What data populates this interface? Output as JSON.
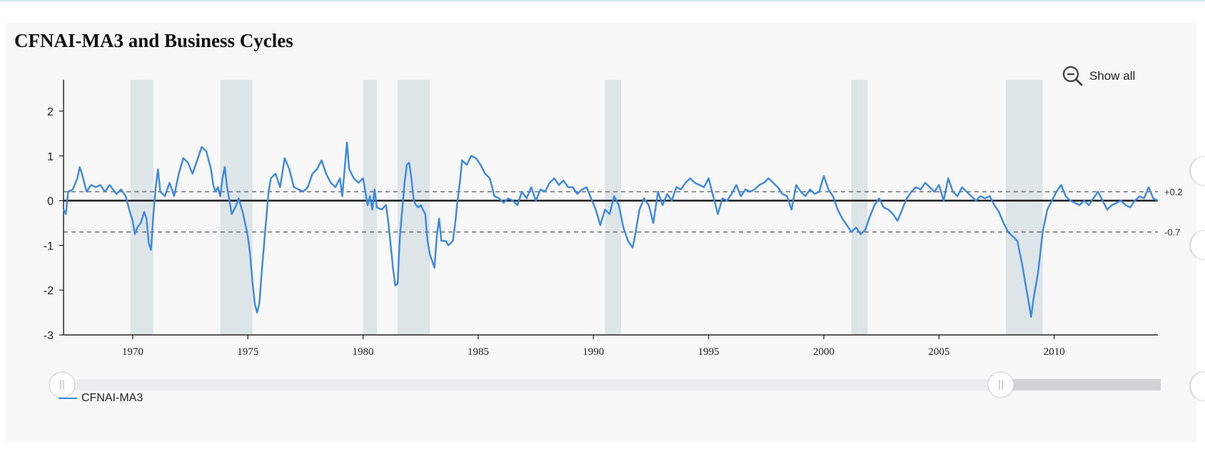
{
  "title": "CFNAI-MA3 and Business Cycles",
  "show_all_label": "Show all",
  "show_all_icon": "zoom-out-icon",
  "legend": {
    "label": "CFNAI-MA3",
    "color": "#3b88e0"
  },
  "colors": {
    "line": "#3b88e0",
    "recession": "#dde5e8",
    "zero_line": "#111111",
    "threshold": "#666666",
    "slider_track": "#ececee",
    "slider_outside": "#d3d3d5"
  },
  "chart_data": {
    "type": "line",
    "title": "CFNAI-MA3 and Business Cycles",
    "xlabel": "",
    "ylabel": "",
    "xlim": [
      1967.0,
      2014.5
    ],
    "ylim": [
      -3,
      2.7
    ],
    "xticks": [
      "1970",
      "1975",
      "1980",
      "1985",
      "1990",
      "1995",
      "2000",
      "2005",
      "2010"
    ],
    "yticks": [
      "2",
      "1",
      "0",
      "-1",
      "-2",
      "-3"
    ],
    "grid": false,
    "legend_position": "bottom-left",
    "reference_lines": [
      {
        "y": 0.2,
        "label": "+0.2",
        "style": "dashed"
      },
      {
        "y": -0.7,
        "label": "-0.7",
        "style": "dashed"
      },
      {
        "y": 0,
        "label": "",
        "style": "solid"
      }
    ],
    "recessions": [
      {
        "start": 1969.9,
        "end": 1970.9
      },
      {
        "start": 1973.8,
        "end": 1975.2
      },
      {
        "start": 1980.0,
        "end": 1980.6
      },
      {
        "start": 1981.5,
        "end": 1982.9
      },
      {
        "start": 1990.5,
        "end": 1991.2
      },
      {
        "start": 2001.2,
        "end": 2001.9
      },
      {
        "start": 2007.9,
        "end": 2009.5
      }
    ],
    "series": [
      {
        "name": "CFNAI-MA3",
        "points": [
          [
            1967.0,
            -0.2
          ],
          [
            1967.1,
            -0.3
          ],
          [
            1967.2,
            0.2
          ],
          [
            1967.4,
            0.25
          ],
          [
            1967.6,
            0.5
          ],
          [
            1967.7,
            0.75
          ],
          [
            1967.8,
            0.6
          ],
          [
            1968.0,
            0.2
          ],
          [
            1968.2,
            0.35
          ],
          [
            1968.4,
            0.3
          ],
          [
            1968.6,
            0.35
          ],
          [
            1968.8,
            0.2
          ],
          [
            1969.0,
            0.35
          ],
          [
            1969.3,
            0.15
          ],
          [
            1969.5,
            0.25
          ],
          [
            1969.7,
            0.1
          ],
          [
            1969.85,
            -0.2
          ],
          [
            1970.0,
            -0.45
          ],
          [
            1970.1,
            -0.75
          ],
          [
            1970.2,
            -0.6
          ],
          [
            1970.35,
            -0.5
          ],
          [
            1970.5,
            -0.25
          ],
          [
            1970.6,
            -0.4
          ],
          [
            1970.7,
            -0.95
          ],
          [
            1970.8,
            -1.1
          ],
          [
            1970.9,
            -0.3
          ],
          [
            1971.0,
            0.3
          ],
          [
            1971.1,
            0.7
          ],
          [
            1971.2,
            0.2
          ],
          [
            1971.4,
            0.1
          ],
          [
            1971.6,
            0.4
          ],
          [
            1971.8,
            0.1
          ],
          [
            1972.0,
            0.6
          ],
          [
            1972.2,
            0.95
          ],
          [
            1972.4,
            0.85
          ],
          [
            1972.6,
            0.6
          ],
          [
            1972.8,
            0.9
          ],
          [
            1973.0,
            1.2
          ],
          [
            1973.2,
            1.1
          ],
          [
            1973.4,
            0.7
          ],
          [
            1973.5,
            0.35
          ],
          [
            1973.6,
            0.2
          ],
          [
            1973.7,
            0.3
          ],
          [
            1973.8,
            0.1
          ],
          [
            1973.9,
            0.5
          ],
          [
            1974.0,
            0.75
          ],
          [
            1974.1,
            0.3
          ],
          [
            1974.2,
            0.0
          ],
          [
            1974.3,
            -0.3
          ],
          [
            1974.5,
            -0.1
          ],
          [
            1974.6,
            0.05
          ],
          [
            1974.8,
            -0.3
          ],
          [
            1975.0,
            -0.8
          ],
          [
            1975.1,
            -1.2
          ],
          [
            1975.2,
            -1.8
          ],
          [
            1975.3,
            -2.3
          ],
          [
            1975.4,
            -2.5
          ],
          [
            1975.5,
            -2.3
          ],
          [
            1975.6,
            -1.6
          ],
          [
            1975.7,
            -1.0
          ],
          [
            1975.8,
            -0.4
          ],
          [
            1975.9,
            0.2
          ],
          [
            1976.0,
            0.5
          ],
          [
            1976.2,
            0.6
          ],
          [
            1976.4,
            0.3
          ],
          [
            1976.6,
            0.95
          ],
          [
            1976.8,
            0.7
          ],
          [
            1977.0,
            0.3
          ],
          [
            1977.2,
            0.25
          ],
          [
            1977.4,
            0.2
          ],
          [
            1977.6,
            0.3
          ],
          [
            1977.8,
            0.6
          ],
          [
            1978.0,
            0.7
          ],
          [
            1978.2,
            0.9
          ],
          [
            1978.4,
            0.6
          ],
          [
            1978.6,
            0.4
          ],
          [
            1978.8,
            0.3
          ],
          [
            1979.0,
            0.5
          ],
          [
            1979.1,
            0.1
          ],
          [
            1979.3,
            1.3
          ],
          [
            1979.4,
            0.7
          ],
          [
            1979.6,
            0.5
          ],
          [
            1979.8,
            0.4
          ],
          [
            1980.0,
            0.5
          ],
          [
            1980.1,
            0.2
          ],
          [
            1980.2,
            -0.1
          ],
          [
            1980.3,
            0.1
          ],
          [
            1980.4,
            -0.2
          ],
          [
            1980.5,
            0.25
          ],
          [
            1980.6,
            -0.15
          ],
          [
            1980.8,
            -0.2
          ],
          [
            1981.0,
            -0.1
          ],
          [
            1981.1,
            -0.5
          ],
          [
            1981.3,
            -1.5
          ],
          [
            1981.4,
            -1.9
          ],
          [
            1981.5,
            -1.85
          ],
          [
            1981.6,
            -0.8
          ],
          [
            1981.8,
            0.4
          ],
          [
            1981.9,
            0.8
          ],
          [
            1982.0,
            0.85
          ],
          [
            1982.1,
            0.5
          ],
          [
            1982.2,
            0.0
          ],
          [
            1982.3,
            -0.1
          ],
          [
            1982.4,
            -0.15
          ],
          [
            1982.5,
            -0.1
          ],
          [
            1982.7,
            -0.3
          ],
          [
            1982.8,
            -0.9
          ],
          [
            1982.9,
            -1.2
          ],
          [
            1983.1,
            -1.5
          ],
          [
            1983.2,
            -0.8
          ],
          [
            1983.3,
            -0.4
          ],
          [
            1983.4,
            -0.9
          ],
          [
            1983.6,
            -0.9
          ],
          [
            1983.7,
            -1.0
          ],
          [
            1983.9,
            -0.9
          ],
          [
            1984.0,
            -0.5
          ],
          [
            1984.1,
            0.0
          ],
          [
            1984.2,
            0.4
          ],
          [
            1984.3,
            0.9
          ],
          [
            1984.5,
            0.8
          ],
          [
            1984.7,
            1.0
          ],
          [
            1984.9,
            0.95
          ],
          [
            1985.1,
            0.8
          ],
          [
            1985.3,
            0.6
          ],
          [
            1985.5,
            0.5
          ],
          [
            1985.7,
            0.1
          ],
          [
            1985.9,
            0.05
          ],
          [
            1986.1,
            -0.05
          ],
          [
            1986.3,
            0.05
          ],
          [
            1986.5,
            0.0
          ],
          [
            1986.7,
            -0.1
          ],
          [
            1986.9,
            0.2
          ],
          [
            1987.1,
            0.05
          ],
          [
            1987.3,
            0.3
          ],
          [
            1987.5,
            0.0
          ],
          [
            1987.7,
            0.25
          ],
          [
            1987.9,
            0.2
          ],
          [
            1988.1,
            0.4
          ],
          [
            1988.3,
            0.5
          ],
          [
            1988.5,
            0.35
          ],
          [
            1988.7,
            0.45
          ],
          [
            1988.9,
            0.3
          ],
          [
            1989.1,
            0.3
          ],
          [
            1989.3,
            0.15
          ],
          [
            1989.5,
            0.25
          ],
          [
            1989.7,
            0.3
          ],
          [
            1989.9,
            0.05
          ],
          [
            1990.1,
            -0.2
          ],
          [
            1990.3,
            -0.55
          ],
          [
            1990.5,
            -0.2
          ],
          [
            1990.7,
            -0.3
          ],
          [
            1990.9,
            0.1
          ],
          [
            1991.1,
            -0.1
          ],
          [
            1991.3,
            -0.6
          ],
          [
            1991.5,
            -0.9
          ],
          [
            1991.7,
            -1.05
          ],
          [
            1991.8,
            -0.8
          ],
          [
            1992.0,
            -0.2
          ],
          [
            1992.2,
            0.05
          ],
          [
            1992.4,
            -0.1
          ],
          [
            1992.6,
            -0.5
          ],
          [
            1992.8,
            0.2
          ],
          [
            1993.0,
            -0.1
          ],
          [
            1993.2,
            0.15
          ],
          [
            1993.4,
            0.0
          ],
          [
            1993.6,
            0.3
          ],
          [
            1993.8,
            0.25
          ],
          [
            1994.0,
            0.4
          ],
          [
            1994.2,
            0.5
          ],
          [
            1994.4,
            0.4
          ],
          [
            1994.6,
            0.35
          ],
          [
            1994.8,
            0.3
          ],
          [
            1995.0,
            0.5
          ],
          [
            1995.2,
            0.1
          ],
          [
            1995.4,
            -0.3
          ],
          [
            1995.6,
            0.05
          ],
          [
            1995.8,
            0.0
          ],
          [
            1996.0,
            0.15
          ],
          [
            1996.2,
            0.35
          ],
          [
            1996.4,
            0.1
          ],
          [
            1996.6,
            0.25
          ],
          [
            1996.8,
            0.2
          ],
          [
            1997.0,
            0.25
          ],
          [
            1997.2,
            0.35
          ],
          [
            1997.4,
            0.4
          ],
          [
            1997.6,
            0.5
          ],
          [
            1997.8,
            0.4
          ],
          [
            1998.0,
            0.3
          ],
          [
            1998.2,
            0.15
          ],
          [
            1998.4,
            0.1
          ],
          [
            1998.6,
            -0.2
          ],
          [
            1998.8,
            0.35
          ],
          [
            1999.0,
            0.2
          ],
          [
            1999.2,
            0.1
          ],
          [
            1999.4,
            0.25
          ],
          [
            1999.6,
            0.15
          ],
          [
            1999.8,
            0.2
          ],
          [
            2000.0,
            0.55
          ],
          [
            2000.2,
            0.25
          ],
          [
            2000.4,
            0.1
          ],
          [
            2000.6,
            -0.2
          ],
          [
            2000.8,
            -0.4
          ],
          [
            2001.0,
            -0.55
          ],
          [
            2001.2,
            -0.7
          ],
          [
            2001.4,
            -0.6
          ],
          [
            2001.6,
            -0.75
          ],
          [
            2001.8,
            -0.65
          ],
          [
            2002.0,
            -0.35
          ],
          [
            2002.2,
            -0.1
          ],
          [
            2002.4,
            0.05
          ],
          [
            2002.6,
            -0.15
          ],
          [
            2002.8,
            -0.2
          ],
          [
            2003.0,
            -0.3
          ],
          [
            2003.2,
            -0.45
          ],
          [
            2003.4,
            -0.2
          ],
          [
            2003.6,
            0.05
          ],
          [
            2003.8,
            0.2
          ],
          [
            2004.0,
            0.3
          ],
          [
            2004.2,
            0.25
          ],
          [
            2004.4,
            0.4
          ],
          [
            2004.6,
            0.3
          ],
          [
            2004.8,
            0.2
          ],
          [
            2005.0,
            0.35
          ],
          [
            2005.2,
            0.0
          ],
          [
            2005.4,
            0.5
          ],
          [
            2005.6,
            0.2
          ],
          [
            2005.8,
            0.1
          ],
          [
            2006.0,
            0.3
          ],
          [
            2006.2,
            0.2
          ],
          [
            2006.4,
            0.1
          ],
          [
            2006.6,
            0.0
          ],
          [
            2006.8,
            0.1
          ],
          [
            2007.0,
            0.05
          ],
          [
            2007.2,
            0.1
          ],
          [
            2007.4,
            -0.1
          ],
          [
            2007.6,
            -0.25
          ],
          [
            2007.8,
            -0.5
          ],
          [
            2008.0,
            -0.7
          ],
          [
            2008.2,
            -0.8
          ],
          [
            2008.4,
            -0.9
          ],
          [
            2008.6,
            -1.4
          ],
          [
            2008.8,
            -2.0
          ],
          [
            2008.9,
            -2.3
          ],
          [
            2009.0,
            -2.6
          ],
          [
            2009.1,
            -2.2
          ],
          [
            2009.3,
            -1.6
          ],
          [
            2009.5,
            -0.7
          ],
          [
            2009.7,
            -0.2
          ],
          [
            2009.9,
            0.0
          ],
          [
            2010.1,
            0.2
          ],
          [
            2010.3,
            0.35
          ],
          [
            2010.5,
            0.1
          ],
          [
            2010.7,
            0.0
          ],
          [
            2010.9,
            -0.05
          ],
          [
            2011.1,
            -0.1
          ],
          [
            2011.3,
            0.0
          ],
          [
            2011.5,
            -0.1
          ],
          [
            2011.7,
            0.05
          ],
          [
            2011.9,
            0.2
          ],
          [
            2012.1,
            0.0
          ],
          [
            2012.3,
            -0.2
          ],
          [
            2012.5,
            -0.1
          ],
          [
            2012.7,
            -0.05
          ],
          [
            2012.9,
            0.0
          ],
          [
            2013.1,
            -0.1
          ],
          [
            2013.3,
            -0.15
          ],
          [
            2013.5,
            0.0
          ],
          [
            2013.7,
            0.1
          ],
          [
            2013.9,
            0.05
          ],
          [
            2014.1,
            0.3
          ],
          [
            2014.3,
            0.05
          ],
          [
            2014.5,
            0.0
          ]
        ]
      }
    ]
  }
}
